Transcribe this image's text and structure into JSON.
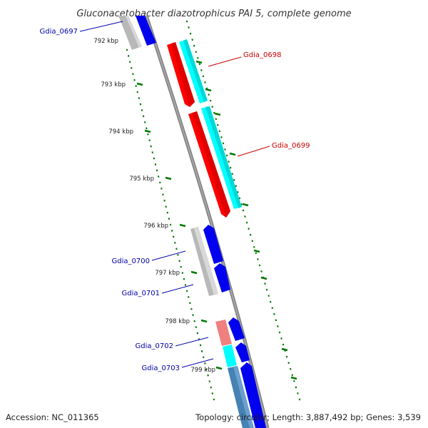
{
  "title": "Gluconacetobacter diazotrophicus PAI 5, complete genome",
  "ticks": [
    "792 kbp",
    "793 kbp",
    "794 kbp",
    "795 kbp",
    "796 kbp",
    "797 kbp",
    "798 kbp",
    "799 kbp"
  ],
  "genes": [
    {
      "id": "Gdia_0697",
      "color": "#0000aa"
    },
    {
      "id": "Gdia_0698",
      "color": "#cc0000"
    },
    {
      "id": "Gdia_0699",
      "color": "#cc0000"
    },
    {
      "id": "Gdia_0700",
      "color": "#0000aa"
    },
    {
      "id": "Gdia_0701",
      "color": "#0000aa"
    },
    {
      "id": "Gdia_0702",
      "color": "#0000aa"
    },
    {
      "id": "Gdia_0703",
      "color": "#0000aa"
    }
  ],
  "colors": {
    "backbone": "#808080",
    "tick": "#007700",
    "forward_cds": "#ff0000",
    "reverse_cds": "#0000ee",
    "cog_cyan": "#00ffff",
    "cog_grey": "#b8b8b8",
    "cog_pink": "#f08080",
    "cog_steel": "#4682b4"
  },
  "footer": {
    "accession": "Accession: NC_011365",
    "topology": "Topology: circular; Length: 3,887,492 bp; Genes: 3,539"
  }
}
